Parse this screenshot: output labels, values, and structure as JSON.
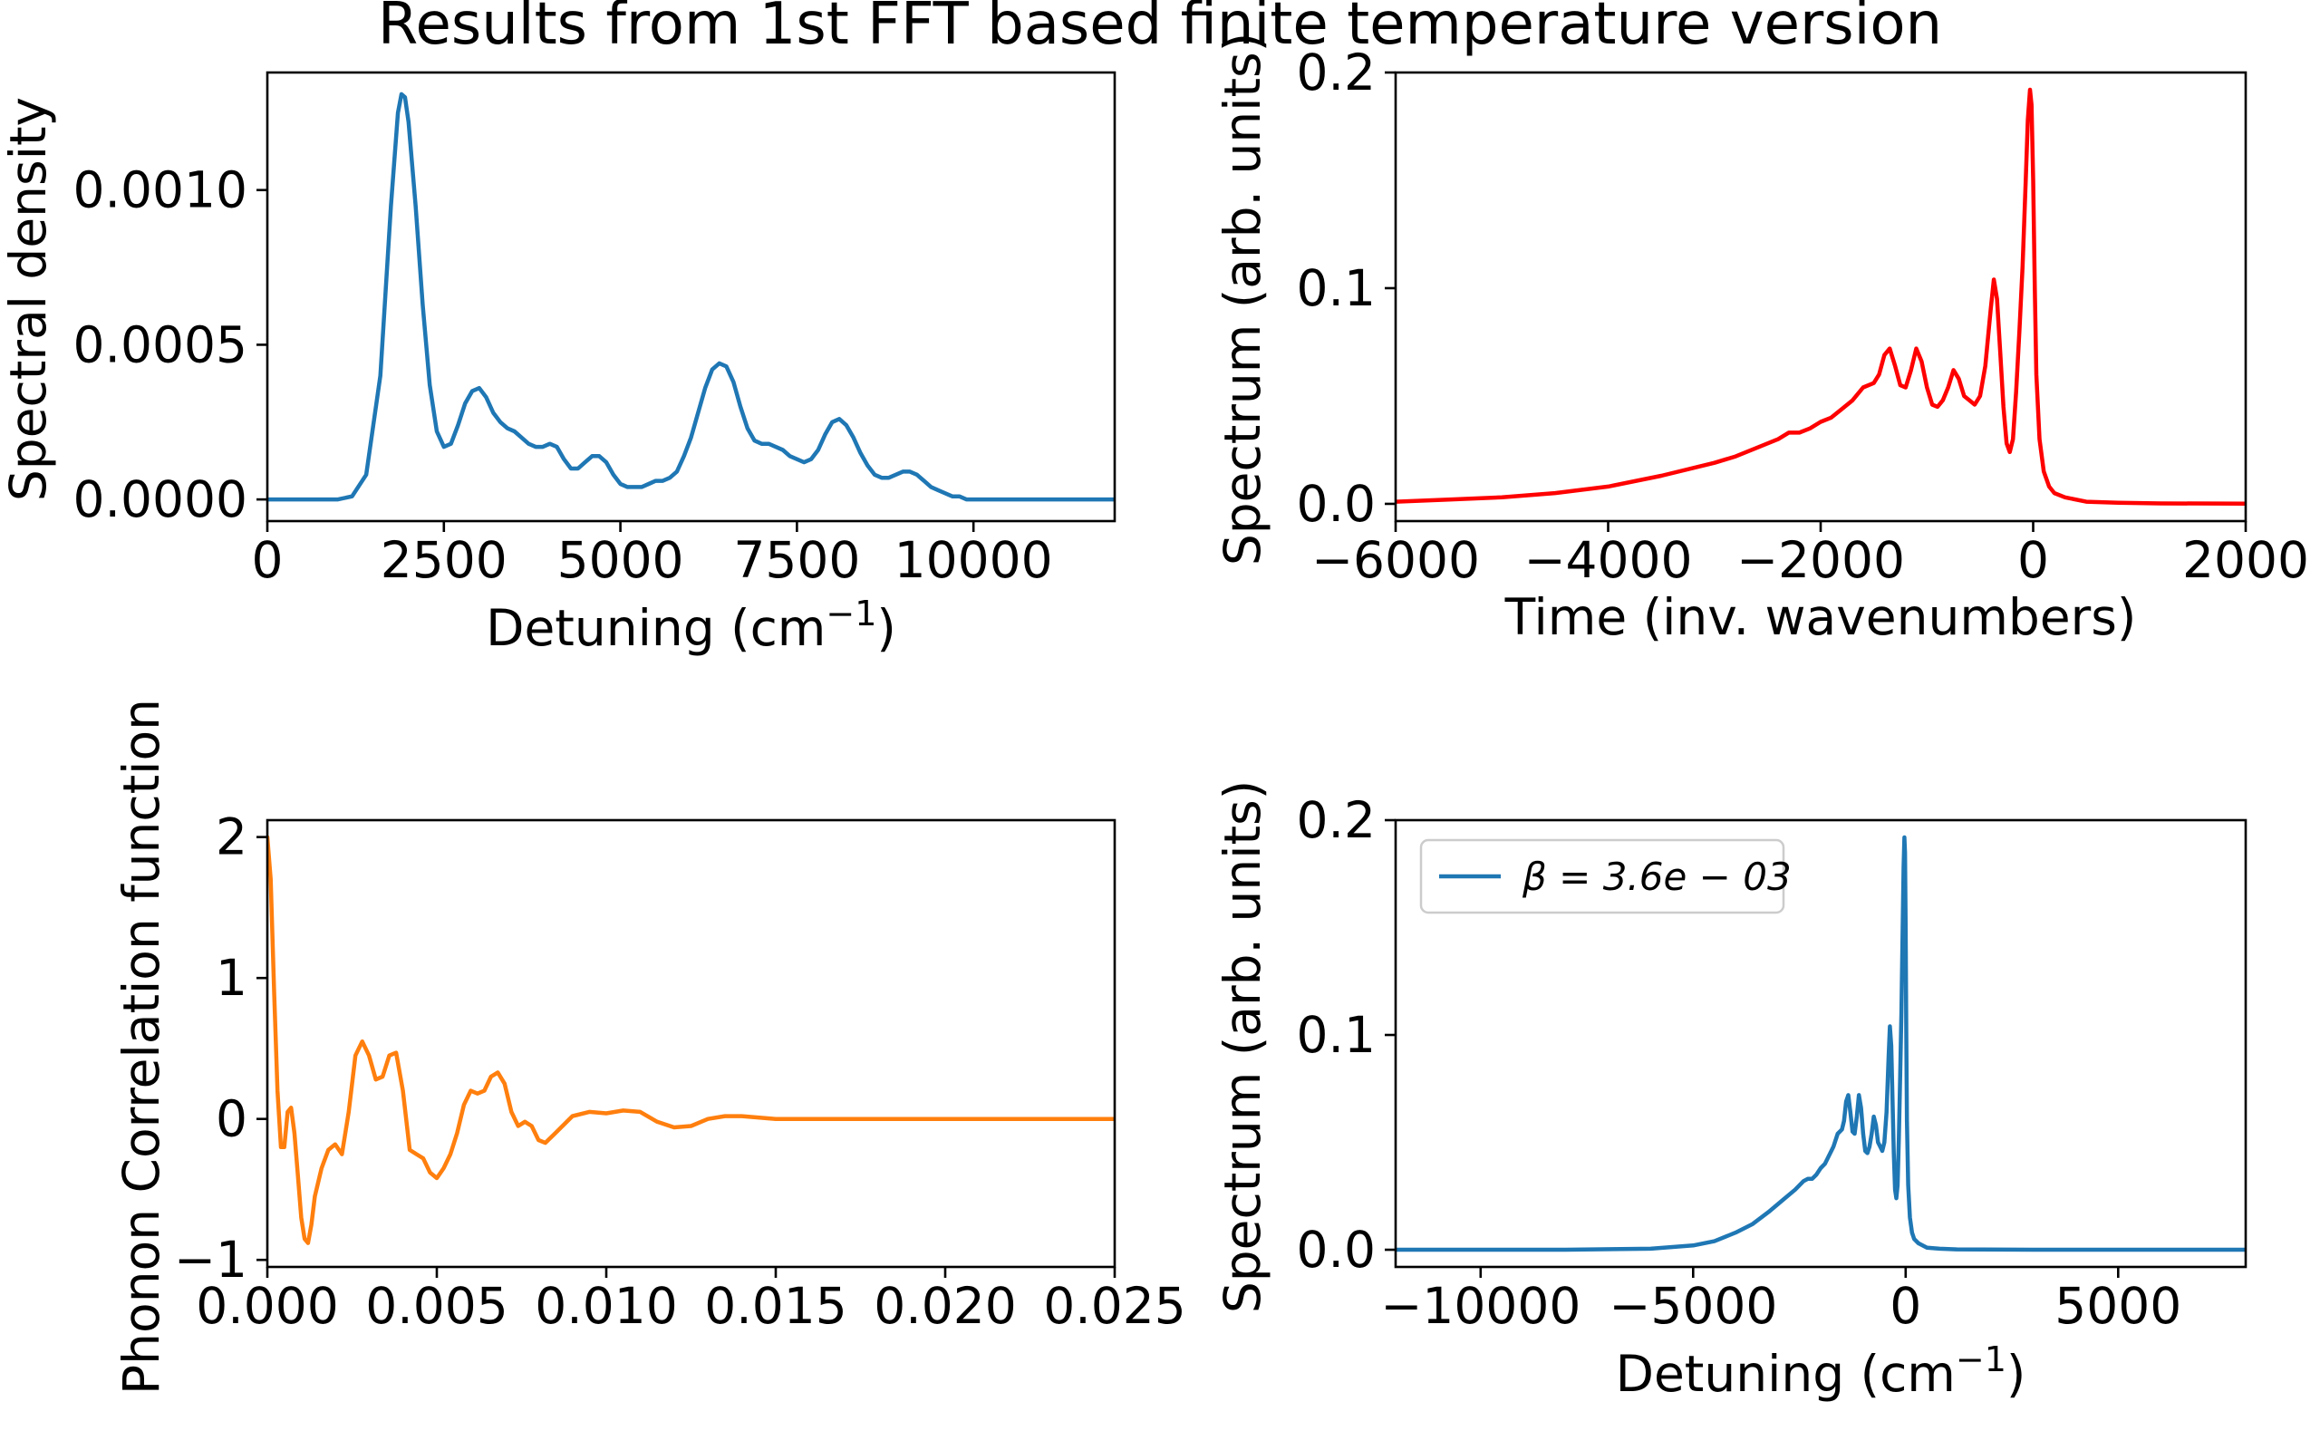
{
  "figure": {
    "title": "Results from 1st FFT based finite temperature version"
  },
  "chart_data": [
    {
      "id": "spectral-density",
      "type": "line",
      "xlabel": "Detuning (cm",
      "xlabel_sup": "−1",
      "xlabel_tail": ")",
      "ylabel": "Spectral density",
      "xlim": [
        0,
        12000
      ],
      "ylim": [
        -7e-05,
        0.00138
      ],
      "xticks": [
        0,
        2500,
        5000,
        7500,
        10000
      ],
      "xtick_labels": [
        "0",
        "2500",
        "5000",
        "7500",
        "10000"
      ],
      "yticks": [
        0,
        0.0005,
        0.001
      ],
      "ytick_labels": [
        "0.0000",
        "0.0005",
        "0.0010"
      ],
      "color": "#1f77b4",
      "series": [
        {
          "x": [
            0,
            1000,
            1200,
            1400,
            1600,
            1750,
            1850,
            1900,
            1950,
            2000,
            2100,
            2200,
            2300,
            2400,
            2500,
            2600,
            2700,
            2800,
            2900,
            3000,
            3100,
            3200,
            3300,
            3400,
            3500,
            3600,
            3700,
            3800,
            3900,
            4000,
            4100,
            4200,
            4300,
            4400,
            4500,
            4600,
            4700,
            4800,
            4900,
            5000,
            5100,
            5200,
            5300,
            5400,
            5500,
            5600,
            5700,
            5800,
            5900,
            6000,
            6100,
            6200,
            6300,
            6400,
            6500,
            6600,
            6700,
            6800,
            6900,
            7000,
            7100,
            7200,
            7300,
            7400,
            7500,
            7600,
            7700,
            7800,
            7900,
            8000,
            8100,
            8200,
            8300,
            8400,
            8500,
            8600,
            8700,
            8800,
            8900,
            9000,
            9100,
            9200,
            9300,
            9400,
            9500,
            9600,
            9700,
            9800,
            9900,
            10000,
            10200,
            10500,
            11000,
            12000
          ],
          "y": [
            0,
            0,
            1e-05,
            8e-05,
            0.0004,
            0.00095,
            0.00125,
            0.00131,
            0.0013,
            0.00122,
            0.00095,
            0.00063,
            0.00037,
            0.00022,
            0.00017,
            0.00018,
            0.00024,
            0.00031,
            0.00035,
            0.00036,
            0.00033,
            0.00028,
            0.00025,
            0.00023,
            0.00022,
            0.0002,
            0.00018,
            0.00017,
            0.00017,
            0.00018,
            0.00017,
            0.00013,
            0.0001,
            0.0001,
            0.00012,
            0.00014,
            0.00014,
            0.00012,
            8e-05,
            5e-05,
            4e-05,
            4e-05,
            4e-05,
            5e-05,
            6e-05,
            6e-05,
            7e-05,
            9e-05,
            0.00014,
            0.0002,
            0.00028,
            0.00036,
            0.00042,
            0.00044,
            0.00043,
            0.00038,
            0.0003,
            0.00023,
            0.00019,
            0.00018,
            0.00018,
            0.00017,
            0.00016,
            0.00014,
            0.00013,
            0.00012,
            0.00013,
            0.00016,
            0.00021,
            0.00025,
            0.00026,
            0.00024,
            0.0002,
            0.00015,
            0.00011,
            8e-05,
            7e-05,
            7e-05,
            8e-05,
            9e-05,
            9e-05,
            8e-05,
            6e-05,
            4e-05,
            3e-05,
            2e-05,
            1e-05,
            1e-05,
            0.0,
            0,
            0,
            0,
            0,
            0
          ]
        }
      ]
    },
    {
      "id": "spectrum-time",
      "type": "line",
      "xlabel": "Time (inv. wavenumbers)",
      "ylabel": "Spectrum (arb. units)",
      "xlim": [
        -6000,
        2000
      ],
      "ylim": [
        -0.008,
        0.2
      ],
      "xticks": [
        -6000,
        -4000,
        -2000,
        0,
        2000
      ],
      "xtick_labels": [
        "−6000",
        "−4000",
        "−2000",
        "0",
        "2000"
      ],
      "yticks": [
        0,
        0.1,
        0.2
      ],
      "ytick_labels": [
        "0.0",
        "0.1",
        "0.2"
      ],
      "color": "#ff0000",
      "series": [
        {
          "x": [
            -6000,
            -5500,
            -5000,
            -4500,
            -4000,
            -3500,
            -3000,
            -2800,
            -2600,
            -2400,
            -2300,
            -2200,
            -2100,
            -2000,
            -1900,
            -1800,
            -1700,
            -1600,
            -1500,
            -1450,
            -1400,
            -1350,
            -1300,
            -1250,
            -1200,
            -1150,
            -1100,
            -1050,
            -1000,
            -950,
            -900,
            -850,
            -800,
            -750,
            -700,
            -650,
            -600,
            -550,
            -500,
            -450,
            -400,
            -370,
            -340,
            -310,
            -280,
            -250,
            -220,
            -190,
            -160,
            -130,
            -100,
            -70,
            -50,
            -30,
            -15,
            0,
            15,
            30,
            60,
            100,
            150,
            200,
            300,
            500,
            800,
            1200,
            2000
          ],
          "y": [
            0.001,
            0.002,
            0.003,
            0.005,
            0.008,
            0.013,
            0.019,
            0.022,
            0.026,
            0.03,
            0.033,
            0.033,
            0.035,
            0.038,
            0.04,
            0.044,
            0.048,
            0.054,
            0.056,
            0.06,
            0.069,
            0.072,
            0.064,
            0.055,
            0.054,
            0.062,
            0.072,
            0.066,
            0.054,
            0.046,
            0.045,
            0.048,
            0.054,
            0.062,
            0.058,
            0.05,
            0.048,
            0.046,
            0.05,
            0.064,
            0.09,
            0.104,
            0.095,
            0.07,
            0.045,
            0.028,
            0.024,
            0.03,
            0.052,
            0.08,
            0.11,
            0.15,
            0.178,
            0.192,
            0.185,
            0.15,
            0.1,
            0.06,
            0.03,
            0.015,
            0.008,
            0.005,
            0.003,
            0.001,
            0.0005,
            0.0002,
            0.0001
          ]
        }
      ]
    },
    {
      "id": "phonon-correlation",
      "type": "line",
      "xlabel": "",
      "ylabel": "Phonon Correlation function",
      "xlim": [
        0,
        0.025
      ],
      "ylim": [
        -1.05,
        2.12
      ],
      "xticks": [
        0,
        0.005,
        0.01,
        0.015,
        0.02,
        0.025
      ],
      "xtick_labels": [
        "0.000",
        "0.005",
        "0.010",
        "0.015",
        "0.020",
        "0.025"
      ],
      "yticks": [
        -1,
        0,
        1,
        2
      ],
      "ytick_labels": [
        "−1",
        "0",
        "1",
        "2"
      ],
      "color": "#ff7f0e",
      "series": [
        {
          "x": [
            0,
            0.0001,
            0.0002,
            0.0003,
            0.0004,
            0.0005,
            0.0006,
            0.0007,
            0.0008,
            0.0009,
            0.001,
            0.0011,
            0.0012,
            0.0013,
            0.0014,
            0.0015,
            0.0016,
            0.0018,
            0.002,
            0.0022,
            0.0024,
            0.0026,
            0.0028,
            0.003,
            0.0032,
            0.0034,
            0.0036,
            0.0038,
            0.004,
            0.0042,
            0.0044,
            0.0046,
            0.0048,
            0.005,
            0.0052,
            0.0054,
            0.0056,
            0.0058,
            0.006,
            0.0062,
            0.0064,
            0.0066,
            0.0068,
            0.007,
            0.0072,
            0.0074,
            0.0076,
            0.0078,
            0.008,
            0.0082,
            0.0085,
            0.009,
            0.0095,
            0.01,
            0.0105,
            0.011,
            0.0115,
            0.012,
            0.0125,
            0.013,
            0.0135,
            0.014,
            0.015,
            0.016,
            0.018,
            0.02,
            0.022,
            0.025
          ],
          "y": [
            2.0,
            1.7,
            0.9,
            0.2,
            -0.2,
            -0.2,
            0.05,
            0.08,
            -0.1,
            -0.4,
            -0.7,
            -0.85,
            -0.88,
            -0.75,
            -0.55,
            -0.45,
            -0.35,
            -0.22,
            -0.18,
            -0.25,
            0.05,
            0.45,
            0.55,
            0.45,
            0.28,
            0.3,
            0.45,
            0.47,
            0.2,
            -0.22,
            -0.25,
            -0.28,
            -0.38,
            -0.42,
            -0.35,
            -0.25,
            -0.1,
            0.1,
            0.2,
            0.18,
            0.2,
            0.3,
            0.33,
            0.25,
            0.05,
            -0.05,
            -0.02,
            -0.05,
            -0.15,
            -0.17,
            -0.1,
            0.02,
            0.05,
            0.04,
            0.06,
            0.05,
            -0.02,
            -0.06,
            -0.05,
            0.0,
            0.02,
            0.02,
            0.0,
            0.0,
            0.0,
            0.0,
            0.0,
            0.0
          ]
        }
      ]
    },
    {
      "id": "spectrum-detuning",
      "type": "line",
      "xlabel": "Detuning (cm",
      "xlabel_sup": "−1",
      "xlabel_tail": ")",
      "ylabel": "Spectrum (arb. units)",
      "xlim": [
        -12000,
        8000
      ],
      "ylim": [
        -0.008,
        0.2
      ],
      "xticks": [
        -10000,
        -5000,
        0,
        5000
      ],
      "xtick_labels": [
        "−10000",
        "−5000",
        "0",
        "5000"
      ],
      "yticks": [
        0,
        0.1,
        0.2
      ],
      "ytick_labels": [
        "0.0",
        "0.1",
        "0.2"
      ],
      "color": "#1f77b4",
      "legend": {
        "label": "β = 3.6e − 03",
        "location": "upper-left"
      },
      "series": [
        {
          "name": "β = 3.6e − 03",
          "x": [
            -12000,
            -8000,
            -6000,
            -5000,
            -4500,
            -4000,
            -3600,
            -3200,
            -2900,
            -2600,
            -2400,
            -2300,
            -2200,
            -2100,
            -2000,
            -1900,
            -1800,
            -1700,
            -1600,
            -1500,
            -1450,
            -1400,
            -1350,
            -1300,
            -1250,
            -1200,
            -1150,
            -1100,
            -1050,
            -1000,
            -950,
            -900,
            -850,
            -800,
            -750,
            -700,
            -650,
            -600,
            -550,
            -500,
            -450,
            -400,
            -370,
            -340,
            -310,
            -280,
            -250,
            -220,
            -190,
            -160,
            -130,
            -100,
            -70,
            -50,
            -30,
            -15,
            0,
            15,
            30,
            60,
            100,
            150,
            200,
            300,
            500,
            800,
            1200,
            3000,
            8000
          ],
          "y": [
            0,
            0,
            0.0005,
            0.002,
            0.004,
            0.008,
            0.012,
            0.018,
            0.023,
            0.028,
            0.032,
            0.033,
            0.033,
            0.035,
            0.038,
            0.04,
            0.044,
            0.048,
            0.054,
            0.056,
            0.06,
            0.069,
            0.072,
            0.064,
            0.055,
            0.054,
            0.062,
            0.072,
            0.066,
            0.054,
            0.046,
            0.045,
            0.048,
            0.054,
            0.062,
            0.058,
            0.05,
            0.048,
            0.046,
            0.05,
            0.064,
            0.09,
            0.104,
            0.095,
            0.07,
            0.045,
            0.028,
            0.024,
            0.03,
            0.052,
            0.08,
            0.11,
            0.15,
            0.178,
            0.192,
            0.185,
            0.15,
            0.1,
            0.06,
            0.03,
            0.015,
            0.008,
            0.005,
            0.003,
            0.001,
            0.0005,
            0.0002,
            0.0,
            0.0
          ]
        }
      ]
    }
  ]
}
